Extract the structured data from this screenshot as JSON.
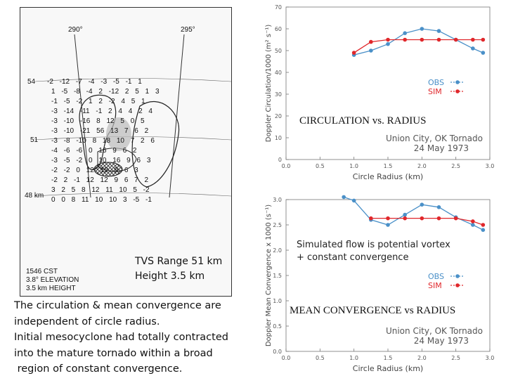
{
  "left_figure": {
    "azimuth_labels": [
      "290°",
      "295°"
    ],
    "range_labels": [
      "54",
      "51",
      "48 km"
    ],
    "grid_rows": [
      "-2 -12 -7 -4 -3 -5 -1 1",
      "1 -5 -8 -4 2 -12 2 5 1 3",
      "-1 -5 -2 1 2 -2 4 5 1",
      "-3 -14 -11 -1 2 4 4 2 4",
      "-3 -10 -16 8 12 5 0 5",
      "-3 -10 -21 56 13 7 6 2",
      "-3 -8 -10 8 18 10 7 2 6",
      "-4 -6 -6 0 16 9 6 2",
      "-3 -5 -2 0 10 16 9 6 3",
      "-2 -2 0 12 12 9 6 3",
      "-2 2 -1 12 12 9 6 7 2",
      "3 2 5 8 12 11 10 5 -2",
      "0 0 8 11 10 10 3 -5 -1"
    ],
    "stamp_lines": [
      "1546 CST",
      "3.8° ELEVATION",
      "3.5 km HEIGHT"
    ],
    "tvs_lines": [
      "TVS Range 51 km",
      "Height 3.5 km"
    ]
  },
  "description_lines": [
    "The circulation & mean convergence are",
    "independent of circle radius.",
    "Initial mesocyclone had totally contracted",
    "into the mature tornado within a broad",
    " region of constant convergence."
  ],
  "colors": {
    "obs": "#4a90c8",
    "sim": "#e0272b"
  },
  "chart_data": [
    {
      "type": "line",
      "title": "CIRCULATION vs. RADIUS",
      "place": "Union City, OK Tornado",
      "date": "24 May 1973",
      "xlabel": "Circle Radius (km)",
      "ylabel": "Doppler Circulation/1000 (m² s⁻¹)",
      "xlim": [
        0.0,
        3.0
      ],
      "ylim": [
        0,
        70
      ],
      "xticks": [
        0.0,
        0.5,
        1.0,
        1.5,
        2.0,
        2.5,
        3.0
      ],
      "xtick_labels": [
        "0.0",
        "0.5",
        "1.0",
        "1.5",
        "2.0",
        "2.5",
        "3.0"
      ],
      "yticks": [
        0,
        10,
        20,
        30,
        40,
        50,
        60,
        70
      ],
      "ytick_labels": [
        "0",
        "10",
        "20",
        "30",
        "40",
        "50",
        "60",
        "70"
      ],
      "legend": [
        "OBS",
        "SIM"
      ],
      "legend_position": "right",
      "series": [
        {
          "name": "OBS",
          "x": [
            1.0,
            1.25,
            1.5,
            1.75,
            2.0,
            2.25,
            2.5,
            2.75,
            2.9
          ],
          "y": [
            48,
            50,
            53,
            58,
            60,
            59,
            55,
            51,
            49
          ]
        },
        {
          "name": "SIM",
          "x": [
            1.0,
            1.25,
            1.5,
            1.75,
            2.0,
            2.25,
            2.5,
            2.75,
            2.9
          ],
          "y": [
            49,
            54,
            55,
            55,
            55,
            55,
            55,
            55,
            55
          ]
        }
      ]
    },
    {
      "type": "line",
      "title": "MEAN CONVERGENCE vs RADIUS",
      "note_lines": [
        "Simulated flow is potential vortex",
        "+ constant convergence"
      ],
      "place": "Union City, OK Tornado",
      "date": "24 May 1973",
      "xlabel": "Circle Radius (km)",
      "ylabel": "Doppler Mean Convergence x 1000 (s⁻¹)",
      "xlim": [
        0.0,
        3.0
      ],
      "ylim": [
        0.0,
        3.0
      ],
      "xticks": [
        0.0,
        0.5,
        1.0,
        1.5,
        2.0,
        2.5,
        3.0
      ],
      "xtick_labels": [
        "0.0",
        "0.5",
        "1.0",
        "1.5",
        "2.0",
        "2.5",
        "3.0"
      ],
      "yticks": [
        0.0,
        0.5,
        1.0,
        1.5,
        2.0,
        2.5,
        3.0
      ],
      "ytick_labels": [
        "0.0",
        "0.5",
        "1.0",
        "1.5",
        "2.0",
        "2.5",
        "3.0"
      ],
      "legend": [
        "OBS",
        "SIM"
      ],
      "legend_position": "right",
      "series": [
        {
          "name": "OBS",
          "x": [
            0.85,
            1.0,
            1.25,
            1.5,
            1.75,
            2.0,
            2.25,
            2.5,
            2.75,
            2.9
          ],
          "y": [
            3.05,
            2.98,
            2.6,
            2.5,
            2.7,
            2.9,
            2.85,
            2.65,
            2.5,
            2.4
          ]
        },
        {
          "name": "SIM",
          "x": [
            1.25,
            1.5,
            1.75,
            2.0,
            2.25,
            2.5,
            2.75,
            2.9
          ],
          "y": [
            2.63,
            2.63,
            2.63,
            2.63,
            2.63,
            2.63,
            2.57,
            2.5
          ]
        }
      ]
    }
  ]
}
